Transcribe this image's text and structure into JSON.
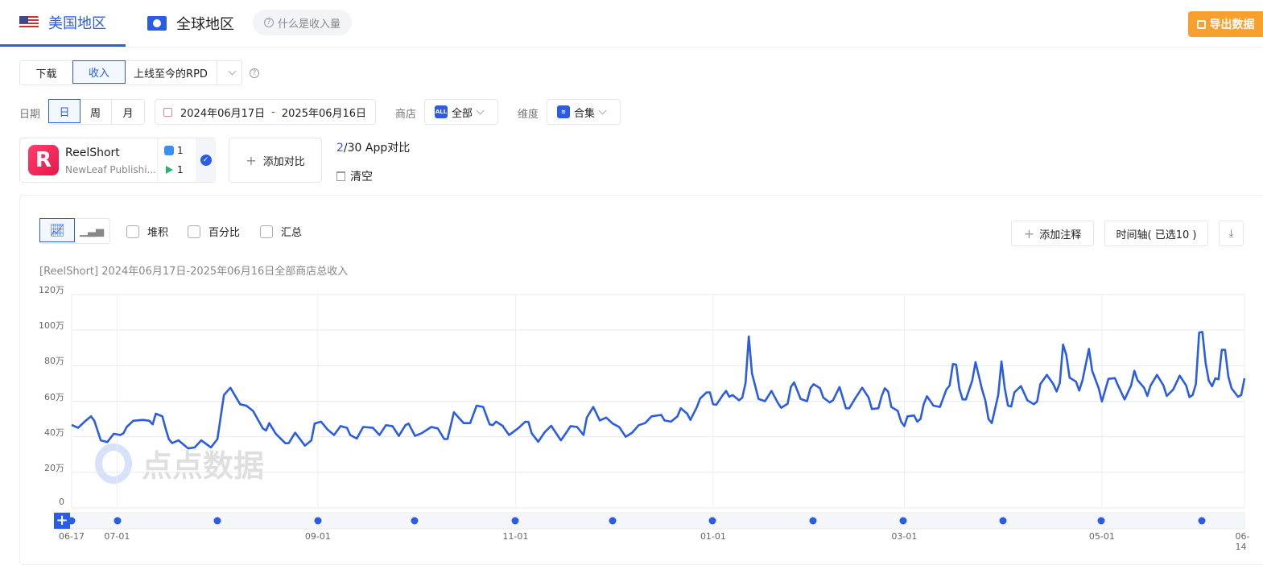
{
  "tabs": [
    {
      "label": "美国地区",
      "icon": "us-flag-icon",
      "active": true
    },
    {
      "label": "全球地区",
      "icon": "globe-icon"
    }
  ],
  "help_pill": "什么是收入量",
  "export_label": "导出数据",
  "colors": {
    "accent": "#2a5ce6",
    "export": "#f7a030",
    "line": "#2a5ce6"
  },
  "metric": {
    "options": [
      "下载",
      "收入"
    ],
    "selected": "收入",
    "dropdown": "上线至今的RPD"
  },
  "date": {
    "label": "日期",
    "granularity": [
      "日",
      "周",
      "月"
    ],
    "selected": "日",
    "start": "2024年06月17日",
    "sep": "-",
    "end": "2025年06月16日"
  },
  "store": {
    "label": "商店",
    "badge": "ALL",
    "value": "全部"
  },
  "dimension": {
    "label": "维度",
    "value": "合集"
  },
  "app": {
    "name": "ReelShort",
    "publisher": "NewLeaf Publishi...",
    "ios_count": "1",
    "gp_count": "1"
  },
  "add_compare": "添加对比",
  "compare_count_current": "2",
  "compare_count_rest": "/30 App对比",
  "clear": "清空",
  "toolbar": {
    "checks": [
      "堆积",
      "百分比",
      "汇总"
    ],
    "add_note": "添加注释",
    "timeline": "时间轴( 已选10 )"
  },
  "chart_data": {
    "type": "line",
    "title": "[ReelShort] 2024年06月17日-2025年06月16日全部商店总收入",
    "ylim": [
      0,
      120
    ],
    "yunit": "万",
    "yticks": [
      "0",
      "20万",
      "40万",
      "60万",
      "80万",
      "100万",
      "120万"
    ],
    "xticks": [
      [
        "2024-06-17",
        "06-17"
      ],
      [
        "2024-07-01",
        "07-01"
      ],
      [
        "2024-09-01",
        "09-01"
      ],
      [
        "2024-11-01",
        "11-01"
      ],
      [
        "2025-01-01",
        "01-01"
      ],
      [
        "2025-03-01",
        "03-01"
      ],
      [
        "2025-05-01",
        "05-01"
      ],
      [
        "2025-06-14",
        "06-14"
      ]
    ],
    "xlim": [
      "2024-06-17",
      "2025-06-14"
    ],
    "grid": true,
    "points": [
      [
        "2024-06-17",
        46.7
      ],
      [
        "2024-06-19",
        45
      ],
      [
        "2024-06-21",
        48.5
      ],
      [
        "2024-06-23",
        51.5
      ],
      [
        "2024-06-24",
        49
      ],
      [
        "2024-06-26",
        38
      ],
      [
        "2024-06-28",
        37
      ],
      [
        "2024-06-30",
        41.7
      ],
      [
        "2024-07-02",
        41
      ],
      [
        "2024-07-03",
        42
      ],
      [
        "2024-07-04",
        45.5
      ],
      [
        "2024-07-06",
        49
      ],
      [
        "2024-07-09",
        49.5
      ],
      [
        "2024-07-11",
        49
      ],
      [
        "2024-07-12",
        47
      ],
      [
        "2024-07-13",
        53
      ],
      [
        "2024-07-15",
        51.5
      ],
      [
        "2024-07-16",
        44.7
      ],
      [
        "2024-07-17",
        38.7
      ],
      [
        "2024-07-18",
        36.4
      ],
      [
        "2024-07-20",
        38
      ],
      [
        "2024-07-23",
        33.4
      ],
      [
        "2024-07-25",
        34
      ],
      [
        "2024-07-27",
        38
      ],
      [
        "2024-07-30",
        34
      ],
      [
        "2024-08-01",
        38.7
      ],
      [
        "2024-08-03",
        63.5
      ],
      [
        "2024-08-05",
        67.6
      ],
      [
        "2024-08-08",
        58.3
      ],
      [
        "2024-08-10",
        57.4
      ],
      [
        "2024-08-12",
        54.5
      ],
      [
        "2024-08-15",
        44.7
      ],
      [
        "2024-08-16",
        43.5
      ],
      [
        "2024-08-17",
        47.7
      ],
      [
        "2024-08-19",
        41.7
      ],
      [
        "2024-08-22",
        36.3
      ],
      [
        "2024-08-23",
        36.4
      ],
      [
        "2024-08-25",
        42.3
      ],
      [
        "2024-08-28",
        35
      ],
      [
        "2024-08-30",
        38
      ],
      [
        "2024-08-31",
        47.4
      ],
      [
        "2024-09-02",
        48.5
      ],
      [
        "2024-09-04",
        44
      ],
      [
        "2024-09-06",
        41
      ],
      [
        "2024-09-08",
        46
      ],
      [
        "2024-09-10",
        45
      ],
      [
        "2024-09-11",
        41
      ],
      [
        "2024-09-13",
        39
      ],
      [
        "2024-09-15",
        45.5
      ],
      [
        "2024-09-18",
        45
      ],
      [
        "2024-09-20",
        41
      ],
      [
        "2024-09-22",
        46.5
      ],
      [
        "2024-09-24",
        46
      ],
      [
        "2024-09-26",
        40.5
      ],
      [
        "2024-09-28",
        46.5
      ],
      [
        "2024-09-29",
        47.4
      ],
      [
        "2024-10-01",
        40.5
      ],
      [
        "2024-10-03",
        42
      ],
      [
        "2024-10-06",
        45.5
      ],
      [
        "2024-10-08",
        44.7
      ],
      [
        "2024-10-10",
        38.7
      ],
      [
        "2024-10-11",
        38.7
      ],
      [
        "2024-10-13",
        53.8
      ],
      [
        "2024-10-16",
        47.7
      ],
      [
        "2024-10-18",
        47.7
      ],
      [
        "2024-10-20",
        57.5
      ],
      [
        "2024-10-22",
        56.8
      ],
      [
        "2024-10-24",
        47
      ],
      [
        "2024-10-25",
        46.5
      ],
      [
        "2024-10-26",
        48.5
      ],
      [
        "2024-10-28",
        46.2
      ],
      [
        "2024-10-30",
        41
      ],
      [
        "2024-11-02",
        45
      ],
      [
        "2024-11-04",
        48.5
      ],
      [
        "2024-11-05",
        48.3
      ],
      [
        "2024-11-06",
        42
      ],
      [
        "2024-11-08",
        37.2
      ],
      [
        "2024-11-10",
        42.5
      ],
      [
        "2024-11-12",
        46.2
      ],
      [
        "2024-11-15",
        38
      ],
      [
        "2024-11-17",
        43.2
      ],
      [
        "2024-11-18",
        46
      ],
      [
        "2024-11-20",
        45.5
      ],
      [
        "2024-11-22",
        41
      ],
      [
        "2024-11-23",
        50.8
      ],
      [
        "2024-11-25",
        56.8
      ],
      [
        "2024-11-27",
        49.2
      ],
      [
        "2024-11-29",
        50.8
      ],
      [
        "2024-12-01",
        47.4
      ],
      [
        "2024-12-03",
        45.5
      ],
      [
        "2024-12-05",
        40
      ],
      [
        "2024-12-07",
        42.3
      ],
      [
        "2024-12-09",
        46.5
      ],
      [
        "2024-12-11",
        47.7
      ],
      [
        "2024-12-13",
        51.5
      ],
      [
        "2024-12-16",
        52.3
      ],
      [
        "2024-12-17",
        49.2
      ],
      [
        "2024-12-19",
        48.5
      ],
      [
        "2024-12-21",
        51.5
      ],
      [
        "2024-12-22",
        56
      ],
      [
        "2024-12-24",
        53
      ],
      [
        "2024-12-25",
        49.5
      ],
      [
        "2024-12-27",
        56.8
      ],
      [
        "2024-12-28",
        61.6
      ],
      [
        "2024-12-30",
        65
      ],
      [
        "2024-12-31",
        65
      ],
      [
        "2025-01-01",
        58.3
      ],
      [
        "2025-01-02",
        58
      ],
      [
        "2025-01-04",
        63.5
      ],
      [
        "2025-01-05",
        65.8
      ],
      [
        "2025-01-06",
        62.5
      ],
      [
        "2025-01-07",
        63.5
      ],
      [
        "2025-01-09",
        60.5
      ],
      [
        "2025-01-10",
        62
      ],
      [
        "2025-01-11",
        70.3
      ],
      [
        "2025-01-12",
        96.4
      ],
      [
        "2025-01-13",
        75.6
      ],
      [
        "2025-01-15",
        61.3
      ],
      [
        "2025-01-17",
        60
      ],
      [
        "2025-01-19",
        65.8
      ],
      [
        "2025-01-21",
        59
      ],
      [
        "2025-01-22",
        56.3
      ],
      [
        "2025-01-24",
        58.6
      ],
      [
        "2025-01-25",
        68
      ],
      [
        "2025-01-26",
        70.6
      ],
      [
        "2025-01-28",
        61.3
      ],
      [
        "2025-01-30",
        60
      ],
      [
        "2025-01-31",
        67.3
      ],
      [
        "2025-02-01",
        69.6
      ],
      [
        "2025-02-03",
        67.3
      ],
      [
        "2025-02-04",
        62
      ],
      [
        "2025-02-06",
        59.3
      ],
      [
        "2025-02-07",
        60.5
      ],
      [
        "2025-02-09",
        68
      ],
      [
        "2025-02-11",
        56
      ],
      [
        "2025-02-12",
        56
      ],
      [
        "2025-02-14",
        62
      ],
      [
        "2025-02-16",
        67.6
      ],
      [
        "2025-02-18",
        62
      ],
      [
        "2025-02-19",
        55.6
      ],
      [
        "2025-02-21",
        56
      ],
      [
        "2025-02-22",
        62.8
      ],
      [
        "2025-02-23",
        67.3
      ],
      [
        "2025-02-24",
        65.5
      ],
      [
        "2025-02-25",
        56.8
      ],
      [
        "2025-02-27",
        54.5
      ],
      [
        "2025-02-28",
        48.5
      ],
      [
        "2025-03-01",
        46
      ],
      [
        "2025-03-02",
        51.5
      ],
      [
        "2025-03-04",
        52
      ],
      [
        "2025-03-05",
        48.5
      ],
      [
        "2025-03-06",
        50
      ],
      [
        "2025-03-07",
        58.3
      ],
      [
        "2025-03-08",
        62.8
      ],
      [
        "2025-03-10",
        57.5
      ],
      [
        "2025-03-12",
        56.8
      ],
      [
        "2025-03-14",
        66.6
      ],
      [
        "2025-03-15",
        68.8
      ],
      [
        "2025-03-16",
        80.9
      ],
      [
        "2025-03-17",
        80.6
      ],
      [
        "2025-03-18",
        67
      ],
      [
        "2025-03-19",
        61
      ],
      [
        "2025-03-20",
        61
      ],
      [
        "2025-03-22",
        71.8
      ],
      [
        "2025-03-23",
        82
      ],
      [
        "2025-03-25",
        66.6
      ],
      [
        "2025-03-26",
        60.5
      ],
      [
        "2025-03-27",
        50
      ],
      [
        "2025-03-28",
        47.7
      ],
      [
        "2025-03-30",
        63.5
      ],
      [
        "2025-03-31",
        82.4
      ],
      [
        "2025-04-01",
        67.3
      ],
      [
        "2025-04-02",
        57.5
      ],
      [
        "2025-04-03",
        57
      ],
      [
        "2025-04-04",
        65
      ],
      [
        "2025-04-06",
        68.5
      ],
      [
        "2025-04-08",
        60.5
      ],
      [
        "2025-04-10",
        58.3
      ],
      [
        "2025-04-11",
        59.8
      ],
      [
        "2025-04-12",
        69.6
      ],
      [
        "2025-04-14",
        74.8
      ],
      [
        "2025-04-16",
        69.6
      ],
      [
        "2025-04-17",
        65.5
      ],
      [
        "2025-04-18",
        70.3
      ],
      [
        "2025-04-19",
        91.9
      ],
      [
        "2025-04-20",
        86.1
      ],
      [
        "2025-04-21",
        73.3
      ],
      [
        "2025-04-23",
        71
      ],
      [
        "2025-04-24",
        66
      ],
      [
        "2025-04-25",
        71.8
      ],
      [
        "2025-04-27",
        89.5
      ],
      [
        "2025-04-28",
        77.1
      ],
      [
        "2025-04-30",
        67.3
      ],
      [
        "2025-05-01",
        59.8
      ],
      [
        "2025-05-03",
        72.6
      ],
      [
        "2025-05-05",
        73
      ],
      [
        "2025-05-06",
        68.8
      ],
      [
        "2025-05-08",
        61
      ],
      [
        "2025-05-10",
        68.8
      ],
      [
        "2025-05-11",
        77.1
      ],
      [
        "2025-05-12",
        71.8
      ],
      [
        "2025-05-14",
        67.6
      ],
      [
        "2025-05-15",
        63
      ],
      [
        "2025-05-16",
        68.8
      ],
      [
        "2025-05-18",
        74.8
      ],
      [
        "2025-05-20",
        68.8
      ],
      [
        "2025-05-21",
        63
      ],
      [
        "2025-05-23",
        66.6
      ],
      [
        "2025-05-25",
        74.4
      ],
      [
        "2025-05-27",
        68.8
      ],
      [
        "2025-05-28",
        62.3
      ],
      [
        "2025-05-29",
        63.5
      ],
      [
        "2025-05-30",
        69.6
      ],
      [
        "2025-05-31",
        98.6
      ],
      [
        "2025-06-01",
        99
      ],
      [
        "2025-06-02",
        81.6
      ],
      [
        "2025-06-03",
        71.5
      ],
      [
        "2025-06-04",
        68.4
      ],
      [
        "2025-06-05",
        72.9
      ],
      [
        "2025-06-06",
        72.3
      ],
      [
        "2025-06-07",
        88.9
      ],
      [
        "2025-06-08",
        88.9
      ],
      [
        "2025-06-09",
        74
      ],
      [
        "2025-06-10",
        67.3
      ],
      [
        "2025-06-12",
        62.5
      ],
      [
        "2025-06-13",
        63.5
      ],
      [
        "2025-06-14",
        72.9
      ]
    ],
    "watermark": "点点数据"
  }
}
